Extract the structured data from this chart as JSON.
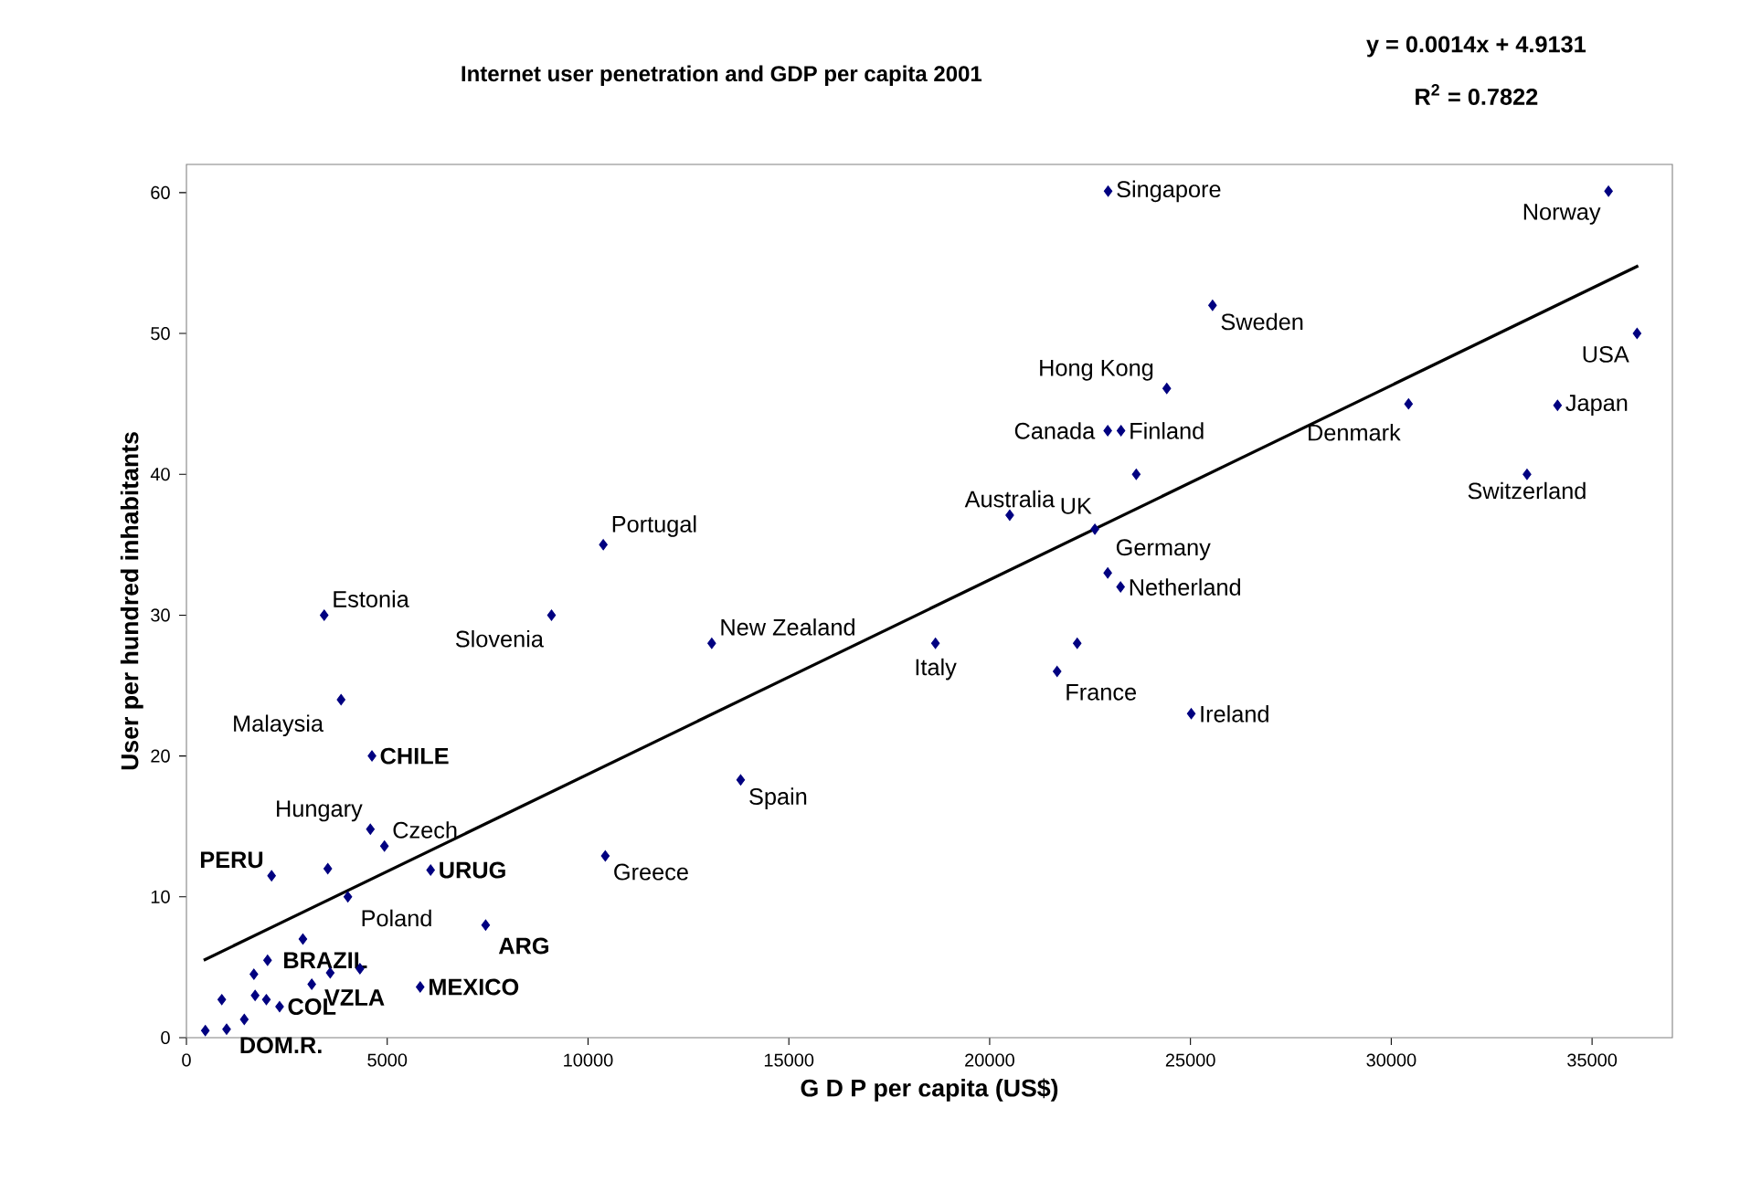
{
  "chart_data": {
    "type": "scatter",
    "title": "Internet user penetration and GDP per capita 2001",
    "xlabel": "G D P  per capita (US$)",
    "ylabel": "User per hundred inhabitants",
    "xlim": [
      0,
      37000
    ],
    "ylim": [
      0,
      62
    ],
    "xticks": [
      0,
      5000,
      10000,
      15000,
      20000,
      25000,
      30000,
      35000
    ],
    "yticks": [
      0,
      10,
      20,
      30,
      40,
      50,
      60
    ],
    "series": [
      {
        "marker": "diamond",
        "color": "#000080",
        "x": [
          470,
          1000,
          1440,
          880,
          1710,
          1990,
          2320,
          1680,
          2020,
          2900,
          3120,
          3580,
          4320,
          5820,
          7450,
          4020,
          2120,
          3520,
          6080,
          4580,
          4930,
          4620,
          3850,
          3430,
          9090,
          10430,
          10380,
          13080,
          13800,
          18650,
          20500,
          21680,
          22180,
          22940,
          23260,
          22620,
          23650,
          22940,
          23270,
          24410,
          22950,
          25550,
          25020,
          30430,
          33380,
          34140,
          35410,
          36120
        ],
        "values": [
          0.5,
          0.6,
          1.3,
          2.7,
          3.0,
          2.7,
          2.2,
          4.5,
          5.5,
          7.0,
          3.8,
          4.6,
          4.9,
          3.6,
          8.0,
          10.0,
          11.5,
          12.0,
          11.9,
          14.8,
          13.6,
          20,
          24,
          30,
          30,
          12.9,
          35,
          28,
          18.3,
          28,
          37.1,
          26,
          28,
          33,
          32,
          36.1,
          40,
          43.1,
          43.1,
          46.1,
          60.1,
          52,
          23,
          45,
          40,
          44.9,
          60.1,
          50
        ]
      },
      {
        "type": "line",
        "marker": "none",
        "color": "#000000",
        "x": [
          430,
          36150
        ],
        "values": [
          5.5,
          54.8
        ]
      }
    ],
    "annotations": [
      {
        "text": "Singapore",
        "x": 22950,
        "y": 60.1
      },
      {
        "text": "Norway",
        "x": 35410,
        "y": 60.1
      },
      {
        "text": "Sweden",
        "x": 25550,
        "y": 52
      },
      {
        "text": "Hong Kong",
        "x": 24410,
        "y": 46.1
      },
      {
        "text": "Canada",
        "x": 22940,
        "y": 43.1
      },
      {
        "text": "Finland",
        "x": 23270,
        "y": 43.1
      },
      {
        "text": "Denmark",
        "x": 30430,
        "y": 45
      },
      {
        "text": "USA",
        "x": 36120,
        "y": 50
      },
      {
        "text": "Japan",
        "x": 34140,
        "y": 44.9
      },
      {
        "text": "Switzerland",
        "x": 33380,
        "y": 40
      },
      {
        "text": "Australia",
        "x": 20500,
        "y": 37.1
      },
      {
        "text": "UK",
        "x": 22620,
        "y": 36.1
      },
      {
        "text": "Germany",
        "x": 22940,
        "y": 33
      },
      {
        "text": "Netherland",
        "x": 23260,
        "y": 32
      },
      {
        "text": "Portugal",
        "x": 10380,
        "y": 35
      },
      {
        "text": "New Zealand",
        "x": 13080,
        "y": 28
      },
      {
        "text": "Italy",
        "x": 18650,
        "y": 28
      },
      {
        "text": "France",
        "x": 21680,
        "y": 26
      },
      {
        "text": "Ireland",
        "x": 25020,
        "y": 23
      },
      {
        "text": "Spain",
        "x": 13800,
        "y": 18.3
      },
      {
        "text": "Greece",
        "x": 10430,
        "y": 12.9
      },
      {
        "text": "Estonia",
        "x": 3430,
        "y": 30
      },
      {
        "text": "Slovenia",
        "x": 9090,
        "y": 30
      },
      {
        "text": "Malaysia",
        "x": 3850,
        "y": 24
      },
      {
        "text": "**CHILE**",
        "x": 4620,
        "y": 20
      },
      {
        "text": "Hungary",
        "x": 4580,
        "y": 14.8
      },
      {
        "text": "Czech",
        "x": 4930,
        "y": 13.6
      },
      {
        "text": "**PERU**",
        "x": 2120,
        "y": 11.5
      },
      {
        "text": "**URUG**",
        "x": 6080,
        "y": 11.9
      },
      {
        "text": "Poland",
        "x": 4020,
        "y": 10.0
      },
      {
        "text": "**ARG**",
        "x": 7450,
        "y": 8.0
      },
      {
        "text": "**BRAZIL**",
        "x": 2020,
        "y": 5.5
      },
      {
        "text": "**VZLA**",
        "x": 3120,
        "y": 3.8
      },
      {
        "text": "**MEXICO**",
        "x": 5820,
        "y": 3.6
      },
      {
        "text": "**COL**",
        "x": 2320,
        "y": 2.2
      },
      {
        "text": "**DOM.R.**",
        "x": 1000,
        "y": 0.6
      },
      "**y = 0.0014x + 4.9131**",
      "**R$^{2}$ = 0.7822**"
    ]
  }
}
